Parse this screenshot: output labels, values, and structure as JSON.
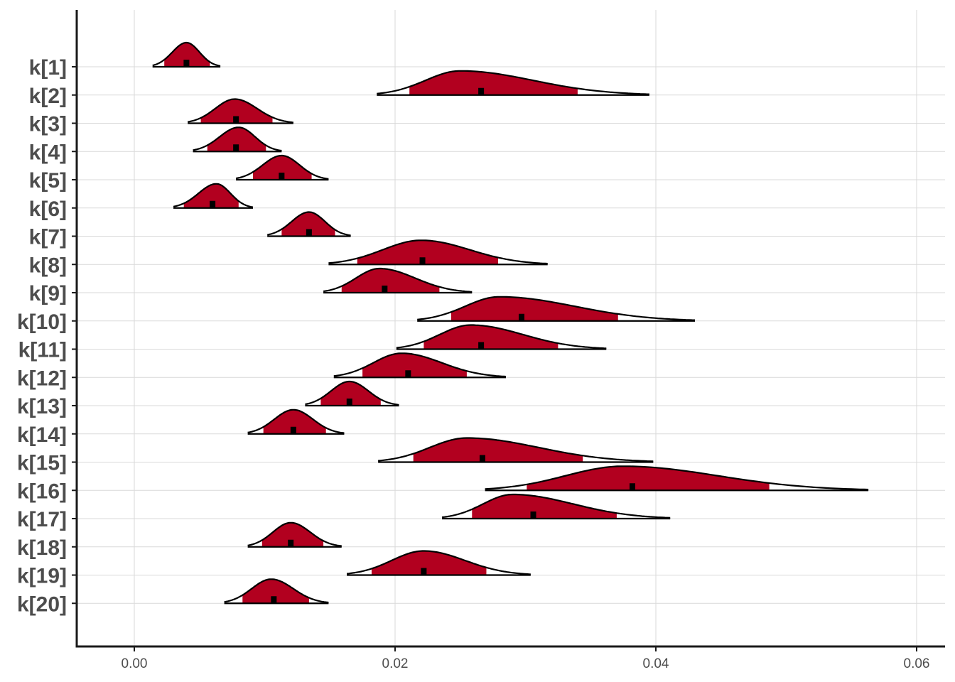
{
  "chart_data": {
    "type": "ridgeline",
    "title": "",
    "xlabel": "",
    "ylabel": "",
    "xlim": [
      -0.0045,
      0.062
    ],
    "xticks": [
      0.0,
      0.02,
      0.04,
      0.06
    ],
    "xtick_labels": [
      "0.00",
      "0.02",
      "0.04",
      "0.06"
    ],
    "grid": true,
    "fill_color": "#b2001f",
    "series": [
      {
        "label": "k[1]",
        "median": 0.004,
        "mode": 0.004,
        "ci50": [
          0.0023,
          0.0058
        ],
        "range": [
          0.0014,
          0.0066
        ]
      },
      {
        "label": "k[2]",
        "median": 0.0266,
        "mode": 0.025,
        "ci50": [
          0.0211,
          0.034
        ],
        "range": [
          0.0186,
          0.0395
        ]
      },
      {
        "label": "k[3]",
        "median": 0.0078,
        "mode": 0.0077,
        "ci50": [
          0.0051,
          0.0106
        ],
        "range": [
          0.0041,
          0.0122
        ]
      },
      {
        "label": "k[4]",
        "median": 0.0078,
        "mode": 0.008,
        "ci50": [
          0.0056,
          0.0101
        ],
        "range": [
          0.0045,
          0.0113
        ]
      },
      {
        "label": "k[5]",
        "median": 0.0113,
        "mode": 0.0113,
        "ci50": [
          0.0091,
          0.0136
        ],
        "range": [
          0.0078,
          0.0149
        ]
      },
      {
        "label": "k[6]",
        "median": 0.006,
        "mode": 0.0063,
        "ci50": [
          0.0038,
          0.008
        ],
        "range": [
          0.003,
          0.0091
        ]
      },
      {
        "label": "k[7]",
        "median": 0.0134,
        "mode": 0.0134,
        "ci50": [
          0.0113,
          0.0154
        ],
        "range": [
          0.0102,
          0.0166
        ]
      },
      {
        "label": "k[8]",
        "median": 0.0221,
        "mode": 0.022,
        "ci50": [
          0.0171,
          0.0279
        ],
        "range": [
          0.0149,
          0.0317
        ]
      },
      {
        "label": "k[9]",
        "median": 0.0192,
        "mode": 0.0188,
        "ci50": [
          0.0159,
          0.0234
        ],
        "range": [
          0.0145,
          0.0259
        ]
      },
      {
        "label": "k[10]",
        "median": 0.0297,
        "mode": 0.028,
        "ci50": [
          0.0243,
          0.0371
        ],
        "range": [
          0.0217,
          0.043
        ]
      },
      {
        "label": "k[11]",
        "median": 0.0266,
        "mode": 0.0258,
        "ci50": [
          0.0222,
          0.0325
        ],
        "range": [
          0.0201,
          0.0362
        ]
      },
      {
        "label": "k[12]",
        "median": 0.021,
        "mode": 0.0205,
        "ci50": [
          0.0175,
          0.0255
        ],
        "range": [
          0.0153,
          0.0285
        ]
      },
      {
        "label": "k[13]",
        "median": 0.0165,
        "mode": 0.0165,
        "ci50": [
          0.0143,
          0.0189
        ],
        "range": [
          0.0131,
          0.0203
        ]
      },
      {
        "label": "k[14]",
        "median": 0.0122,
        "mode": 0.0122,
        "ci50": [
          0.0099,
          0.0147
        ],
        "range": [
          0.0087,
          0.0161
        ]
      },
      {
        "label": "k[15]",
        "median": 0.0267,
        "mode": 0.0255,
        "ci50": [
          0.0214,
          0.0344
        ],
        "range": [
          0.0187,
          0.0398
        ]
      },
      {
        "label": "k[16]",
        "median": 0.0382,
        "mode": 0.0375,
        "ci50": [
          0.0301,
          0.0487
        ],
        "range": [
          0.0269,
          0.0563
        ]
      },
      {
        "label": "k[17]",
        "median": 0.0306,
        "mode": 0.029,
        "ci50": [
          0.0259,
          0.037
        ],
        "range": [
          0.0236,
          0.0411
        ]
      },
      {
        "label": "k[18]",
        "median": 0.012,
        "mode": 0.012,
        "ci50": [
          0.0098,
          0.0145
        ],
        "range": [
          0.0087,
          0.0159
        ]
      },
      {
        "label": "k[19]",
        "median": 0.0222,
        "mode": 0.0222,
        "ci50": [
          0.0182,
          0.027
        ],
        "range": [
          0.0163,
          0.0304
        ]
      },
      {
        "label": "k[20]",
        "median": 0.0107,
        "mode": 0.0105,
        "ci50": [
          0.0083,
          0.0134
        ],
        "range": [
          0.0069,
          0.0149
        ]
      }
    ]
  }
}
